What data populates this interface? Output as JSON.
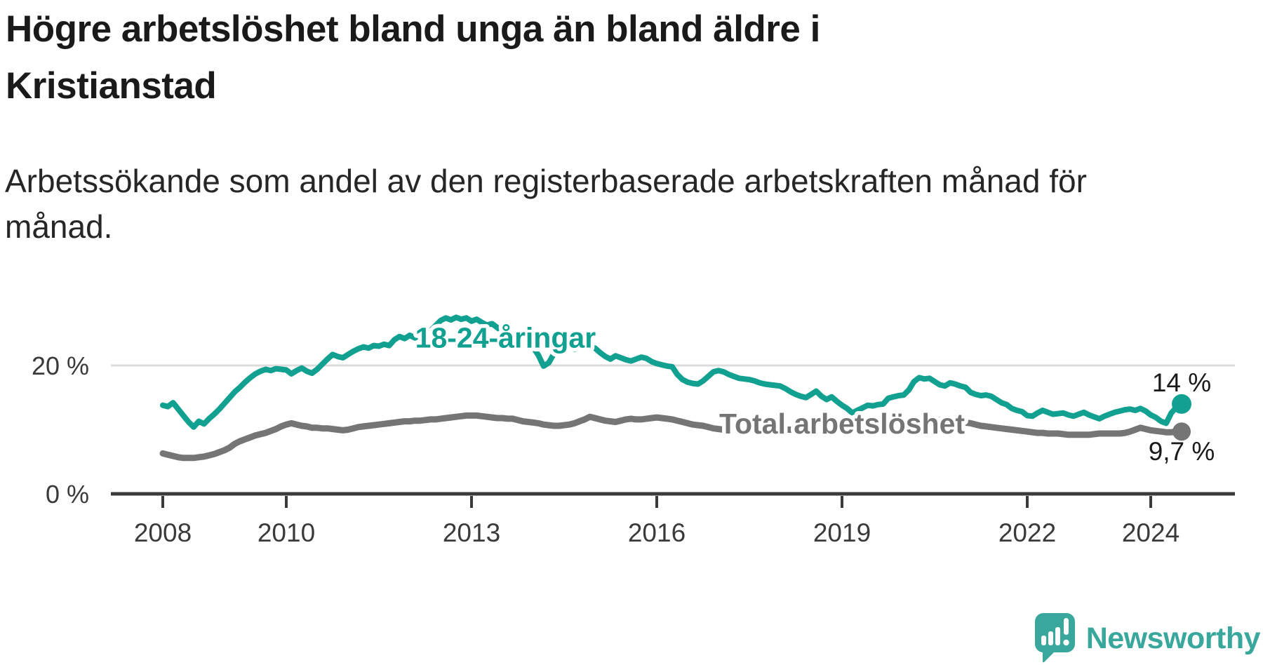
{
  "header": {
    "title": "Högre arbetslöshet bland unga än bland äldre i Kristianstad",
    "subtitle": "Arbetssökande som andel av den registerbaserade arbetskraften månad för månad."
  },
  "footer": {
    "brand": "Newsworthy"
  },
  "colors": {
    "youth_line": "#12A191",
    "total_line": "#757575",
    "axis": "#3A3A3A",
    "gridline": "#DCDCDC",
    "value_label": "#1A1A1A",
    "logo_teal": "#3AA79C"
  },
  "chart_data": {
    "type": "line",
    "title": "Högre arbetslöshet bland unga än bland äldre i Kristianstad",
    "subtitle": "Arbetssökande som andel av den registerbaserade arbetskraften månad för månad.",
    "unit": "%",
    "x_axis": {
      "start_year": 2008,
      "step_months": 1,
      "tick_years": [
        2008,
        2010,
        2013,
        2016,
        2019,
        2022,
        2024
      ]
    },
    "y_axis": {
      "ticks": [
        {
          "value": 0,
          "label": "0 %"
        },
        {
          "value": 20,
          "label": "20 %"
        }
      ],
      "ylim": [
        0,
        30
      ],
      "grid_values": [
        20
      ]
    },
    "legend_position": "inline-labels",
    "series": [
      {
        "name": "18-24-åringar",
        "color": "#12A191",
        "end_label": "14 %",
        "end_value": 14,
        "label_anchor": {
          "t": 2013.55,
          "v": 24.3
        },
        "values": [
          13.8,
          13.6,
          14.2,
          13.2,
          12.2,
          11.2,
          10.4,
          11.3,
          10.9,
          11.7,
          12.4,
          13.2,
          14.1,
          15.0,
          15.9,
          16.6,
          17.4,
          18.1,
          18.7,
          19.1,
          19.4,
          19.2,
          19.5,
          19.4,
          19.3,
          18.7,
          19.2,
          19.6,
          19.1,
          18.8,
          19.4,
          20.2,
          21.0,
          21.7,
          21.4,
          21.2,
          21.7,
          22.2,
          22.6,
          22.9,
          22.7,
          23.1,
          23.0,
          23.3,
          23.1,
          24.0,
          24.5,
          24.2,
          24.7,
          24.3,
          24.7,
          25.1,
          25.4,
          26.2,
          27.0,
          27.4,
          27.1,
          27.5,
          27.2,
          27.4,
          26.9,
          27.2,
          26.7,
          26.3,
          26.5,
          25.9,
          25.3,
          24.6,
          23.9,
          23.3,
          23.6,
          23.1,
          22.8,
          21.6,
          19.9,
          20.4,
          21.8,
          22.3,
          22.7,
          23.1,
          22.5,
          22.9,
          23.3,
          23.0,
          22.7,
          22.0,
          21.4,
          21.0,
          21.5,
          21.2,
          20.9,
          20.7,
          21.0,
          21.3,
          21.1,
          20.6,
          20.3,
          20.1,
          19.9,
          19.8,
          18.6,
          17.8,
          17.4,
          17.2,
          17.1,
          17.6,
          18.3,
          19.0,
          19.2,
          19.0,
          18.6,
          18.3,
          18.0,
          17.9,
          17.8,
          17.6,
          17.3,
          17.1,
          17.0,
          16.9,
          16.8,
          16.4,
          15.9,
          15.5,
          15.2,
          15.0,
          15.5,
          16.0,
          15.2,
          14.7,
          15.1,
          14.4,
          13.8,
          13.3,
          12.6,
          13.0,
          13.4,
          13.8,
          13.7,
          13.9,
          14.0,
          14.9,
          15.1,
          15.3,
          15.4,
          16.2,
          17.5,
          18.1,
          17.9,
          18.0,
          17.5,
          17.0,
          16.8,
          17.3,
          17.1,
          16.8,
          16.6,
          15.8,
          15.5,
          15.3,
          15.4,
          15.2,
          14.7,
          14.2,
          13.9,
          13.3,
          13.0,
          12.8,
          12.2,
          12.1,
          12.6,
          13.0,
          12.7,
          12.4,
          12.5,
          12.6,
          12.3,
          12.1,
          12.4,
          12.7,
          12.3,
          12.0,
          11.7,
          12.1,
          12.4,
          12.7,
          12.9,
          13.1,
          13.2,
          13.0,
          13.3,
          12.9,
          12.3,
          11.9,
          11.3,
          11.0,
          12.6,
          13.5,
          14.0
        ]
      },
      {
        "name": "Total arbetslöshet",
        "color": "#757575",
        "end_label": "9,7 %",
        "end_value": 9.7,
        "label_anchor": {
          "t": 2019.0,
          "v": 10.95
        },
        "values": [
          6.3,
          6.1,
          5.9,
          5.7,
          5.6,
          5.6,
          5.6,
          5.7,
          5.8,
          6.0,
          6.2,
          6.5,
          6.8,
          7.2,
          7.8,
          8.2,
          8.5,
          8.8,
          9.1,
          9.3,
          9.5,
          9.8,
          10.1,
          10.5,
          10.8,
          11.0,
          10.8,
          10.6,
          10.5,
          10.3,
          10.3,
          10.2,
          10.2,
          10.1,
          10.0,
          9.9,
          10.0,
          10.2,
          10.4,
          10.5,
          10.6,
          10.7,
          10.8,
          10.9,
          11.0,
          11.1,
          11.2,
          11.3,
          11.3,
          11.4,
          11.4,
          11.5,
          11.6,
          11.6,
          11.7,
          11.8,
          11.9,
          12.0,
          12.1,
          12.2,
          12.2,
          12.2,
          12.1,
          12.0,
          11.9,
          11.8,
          11.8,
          11.7,
          11.7,
          11.5,
          11.3,
          11.2,
          11.1,
          11.0,
          10.8,
          10.7,
          10.6,
          10.6,
          10.7,
          10.8,
          11.0,
          11.3,
          11.6,
          12.0,
          11.8,
          11.6,
          11.4,
          11.3,
          11.2,
          11.4,
          11.6,
          11.7,
          11.6,
          11.6,
          11.7,
          11.8,
          11.9,
          11.8,
          11.7,
          11.6,
          11.4,
          11.2,
          11.0,
          10.8,
          10.7,
          10.6,
          10.4,
          10.2,
          10.1,
          10.0,
          9.9,
          10.0,
          10.2,
          10.3,
          10.2,
          10.1,
          10.2,
          10.3,
          10.2,
          10.2,
          10.1,
          10.0,
          10.0,
          9.9,
          9.9,
          9.8,
          9.8,
          9.9,
          9.9,
          10.0,
          10.0,
          10.0,
          9.9,
          9.9,
          9.8,
          9.8,
          9.9,
          9.9,
          10.0,
          10.0,
          10.1,
          10.1,
          10.2,
          10.3,
          10.4,
          10.7,
          11.1,
          11.4,
          11.5,
          11.6,
          11.6,
          11.5,
          11.5,
          11.4,
          11.3,
          11.2,
          11.1,
          11.0,
          10.8,
          10.6,
          10.5,
          10.4,
          10.3,
          10.2,
          10.1,
          10.0,
          9.9,
          9.8,
          9.7,
          9.6,
          9.5,
          9.5,
          9.4,
          9.4,
          9.4,
          9.3,
          9.2,
          9.2,
          9.2,
          9.2,
          9.2,
          9.3,
          9.4,
          9.4,
          9.4,
          9.4,
          9.4,
          9.5,
          9.7,
          10.0,
          10.3,
          10.1,
          9.9,
          9.8,
          9.7,
          9.6,
          9.6,
          9.7,
          9.7
        ]
      }
    ]
  }
}
